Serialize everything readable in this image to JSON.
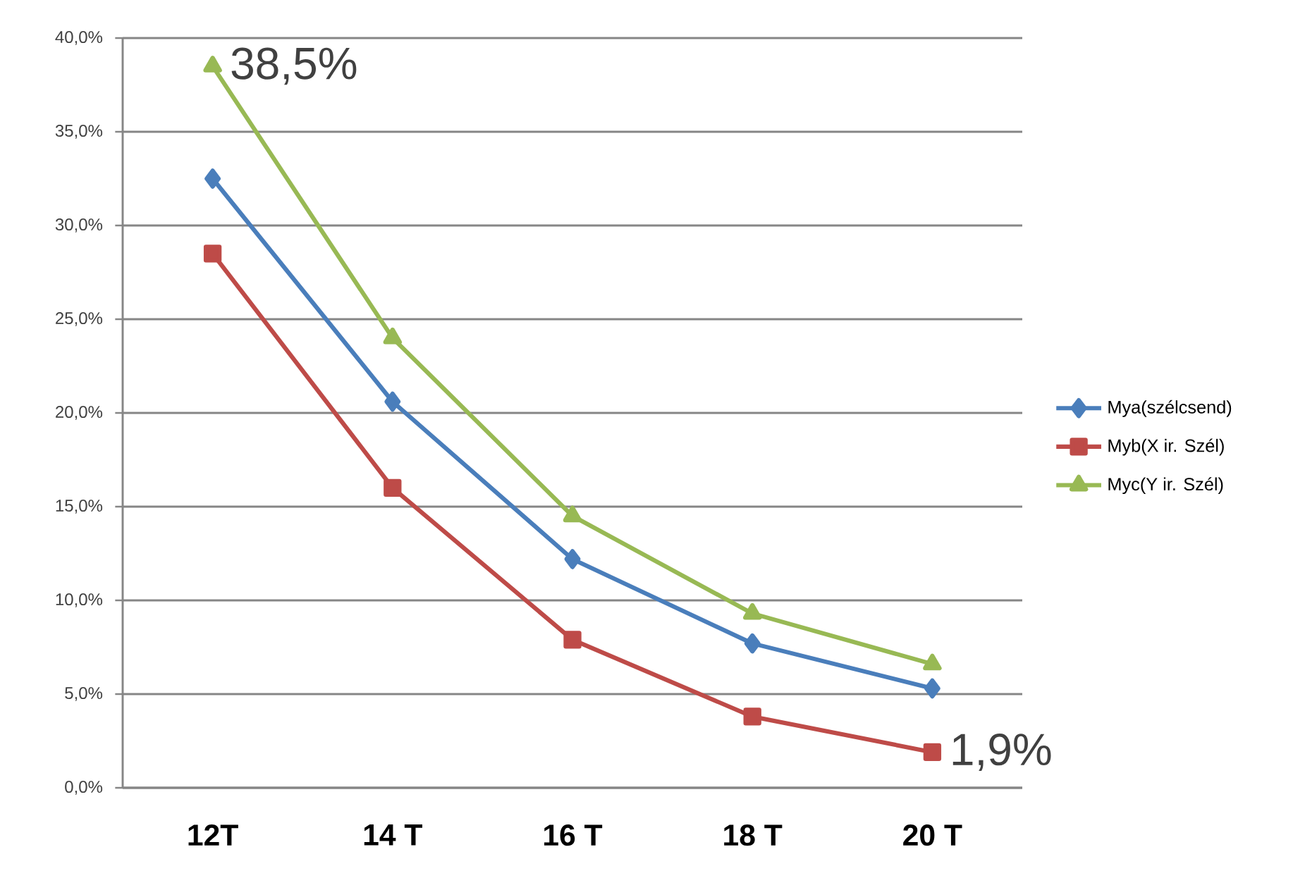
{
  "chart_data": {
    "type": "line",
    "categories": [
      "12T",
      "14 T",
      "16 T",
      "18 T",
      "20 T"
    ],
    "series": [
      {
        "name": "Mya(szélcsend)",
        "color": "#4a7ebb",
        "marker": "diamond",
        "values": [
          32.5,
          20.6,
          12.2,
          7.7,
          5.3
        ]
      },
      {
        "name": "Myb(X ir. Szél)",
        "color": "#be4b48",
        "marker": "square",
        "values": [
          28.5,
          16.0,
          7.9,
          3.8,
          1.9
        ],
        "value_labels": [
          null,
          null,
          null,
          null,
          "1,9%"
        ]
      },
      {
        "name": "Myc(Y ir. Szél)",
        "color": "#98b954",
        "marker": "triangle",
        "values": [
          38.5,
          24.0,
          14.5,
          9.3,
          6.6
        ],
        "value_labels": [
          "38,5%",
          null,
          null,
          null,
          null
        ]
      }
    ],
    "ylim": [
      0,
      40
    ],
    "yticks": [
      {
        "value": 0,
        "label": "0,0%"
      },
      {
        "value": 5,
        "label": "5,0%"
      },
      {
        "value": 10,
        "label": "10,0%"
      },
      {
        "value": 15,
        "label": "15,0%"
      },
      {
        "value": 20,
        "label": "20,0%"
      },
      {
        "value": 25,
        "label": "25,0%"
      },
      {
        "value": 30,
        "label": "30,0%"
      },
      {
        "value": 35,
        "label": "35,0%"
      },
      {
        "value": 40,
        "label": "40,0%"
      }
    ],
    "grid": "y",
    "legend": "right",
    "line_style": "solid"
  }
}
